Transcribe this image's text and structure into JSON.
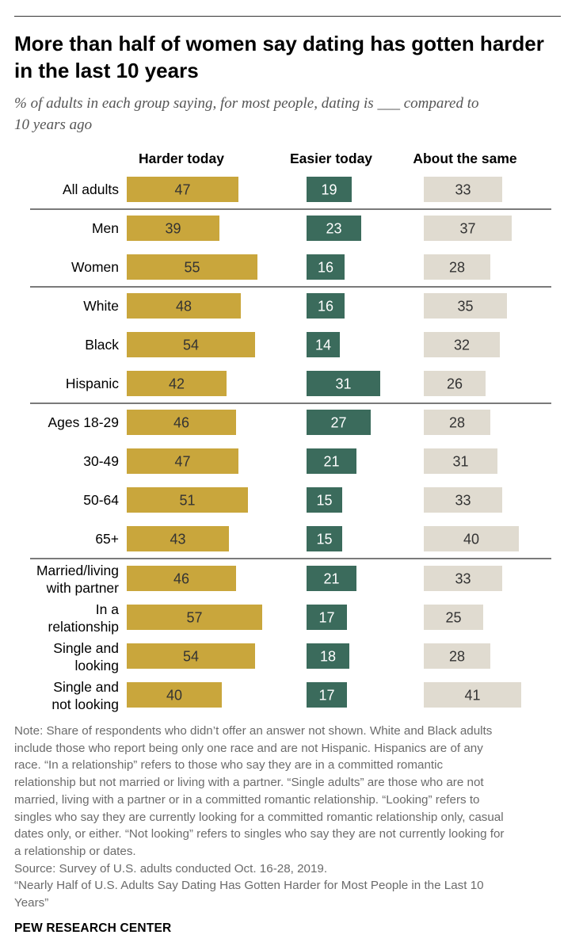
{
  "title_lines": [
    "More than half of women say dating has gotten harder",
    "in the last 10 years"
  ],
  "subtitle_lines": [
    "% of adults in each group saying, for most people, dating is ___ compared to",
    "10 years ago"
  ],
  "colors": {
    "harder": "#c9a63c",
    "easier": "#3b6b5c",
    "same": "#e0dbd0",
    "rule": "#7a7a7a"
  },
  "chart_data": {
    "type": "bar",
    "series": [
      {
        "name": "Harder today",
        "values": [
          47,
          39,
          55,
          48,
          54,
          42,
          46,
          47,
          51,
          43,
          46,
          57,
          54,
          40
        ]
      },
      {
        "name": "Easier today",
        "values": [
          19,
          23,
          16,
          16,
          14,
          31,
          27,
          21,
          15,
          15,
          21,
          17,
          18,
          17
        ]
      },
      {
        "name": "About the same",
        "values": [
          33,
          37,
          28,
          35,
          32,
          26,
          28,
          31,
          33,
          40,
          33,
          25,
          28,
          41
        ]
      }
    ],
    "categories": [
      [
        "All adults"
      ],
      [
        "Men"
      ],
      [
        "Women"
      ],
      [
        "White"
      ],
      [
        "Black"
      ],
      [
        "Hispanic"
      ],
      [
        "Ages 18-29"
      ],
      [
        "30-49"
      ],
      [
        "50-64"
      ],
      [
        "65+"
      ],
      [
        "Married/living",
        "with partner"
      ],
      [
        "In a",
        "relationship"
      ],
      [
        "Single and",
        "looking"
      ],
      [
        "Single and",
        "not looking"
      ]
    ],
    "groups": [
      [
        0
      ],
      [
        1,
        2
      ],
      [
        3,
        4,
        5
      ],
      [
        6,
        7,
        8,
        9
      ],
      [
        10,
        11,
        12,
        13
      ]
    ]
  },
  "note_lines": [
    "Note: Share of respondents who didn’t offer an answer not shown. White and Black adults",
    "include those who report being only one race and are not Hispanic. Hispanics are of any",
    "race. “In a relationship” refers to those who say they are in a committed romantic",
    "relationship but not married or living with a partner. “Single adults” are those who are not",
    "married, living with a partner or in a committed romantic relationship. “Looking” refers to",
    "singles who say they are currently looking for a committed romantic relationship only, casual",
    "dates only, or either. “Not looking” refers to singles who say they are not currently looking for",
    "a relationship or dates.",
    "Source: Survey of U.S. adults conducted Oct. 16-28, 2019.",
    "“Nearly Half of U.S. Adults Say Dating Has Gotten Harder for Most People in the Last 10",
    "Years”"
  ],
  "brand": "PEW RESEARCH CENTER"
}
